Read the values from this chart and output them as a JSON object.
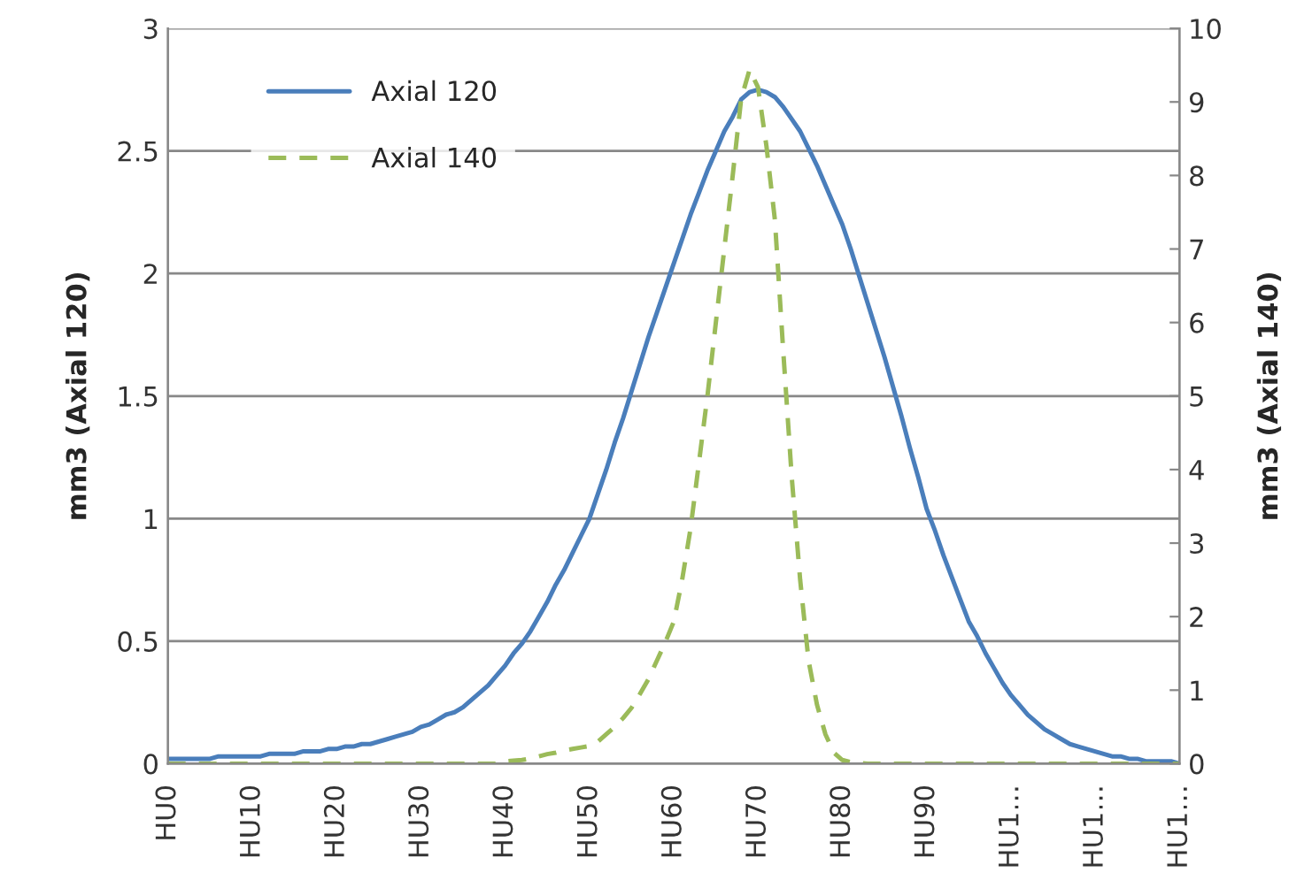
{
  "chart_data": {
    "type": "line",
    "categories": [
      "HU0",
      null,
      null,
      null,
      null,
      null,
      null,
      null,
      null,
      null,
      "HU10",
      null,
      null,
      null,
      null,
      null,
      null,
      null,
      null,
      null,
      "HU20",
      null,
      null,
      null,
      null,
      null,
      null,
      null,
      null,
      null,
      "HU30",
      null,
      null,
      null,
      null,
      null,
      null,
      null,
      null,
      null,
      "HU40",
      null,
      null,
      null,
      null,
      null,
      null,
      null,
      null,
      null,
      "HU50",
      null,
      null,
      null,
      null,
      null,
      null,
      null,
      null,
      null,
      "HU60",
      null,
      null,
      null,
      null,
      null,
      null,
      null,
      null,
      null,
      "HU70",
      null,
      null,
      null,
      null,
      null,
      null,
      null,
      null,
      null,
      "HU80",
      null,
      null,
      null,
      null,
      null,
      null,
      null,
      null,
      null,
      "HU90",
      null,
      null,
      null,
      null,
      null,
      null,
      null,
      null,
      null,
      "HU1…",
      null,
      null,
      null,
      null,
      null,
      null,
      null,
      null,
      null,
      "HU1…",
      null,
      null,
      null,
      null,
      null,
      null,
      null,
      null,
      null,
      "HU1…"
    ],
    "series": [
      {
        "name": "Axial 120",
        "color": "#4a7ebb",
        "line_style": "solid",
        "values": [
          0.02,
          0.02,
          0.02,
          0.02,
          0.02,
          0.02,
          0.03,
          0.03,
          0.03,
          0.03,
          0.03,
          0.03,
          0.04,
          0.04,
          0.04,
          0.04,
          0.05,
          0.05,
          0.05,
          0.06,
          0.06,
          0.07,
          0.07,
          0.08,
          0.08,
          0.09,
          0.1,
          0.11,
          0.12,
          0.13,
          0.15,
          0.16,
          0.18,
          0.2,
          0.21,
          0.23,
          0.26,
          0.29,
          0.32,
          0.36,
          0.4,
          0.45,
          0.49,
          0.54,
          0.6,
          0.66,
          0.73,
          0.79,
          0.86,
          0.93,
          1.0,
          1.1,
          1.2,
          1.31,
          1.41,
          1.52,
          1.63,
          1.74,
          1.84,
          1.94,
          2.04,
          2.14,
          2.24,
          2.33,
          2.42,
          2.5,
          2.58,
          2.64,
          2.71,
          2.74,
          2.75,
          2.74,
          2.72,
          2.68,
          2.63,
          2.58,
          2.51,
          2.44,
          2.36,
          2.28,
          2.2,
          2.1,
          1.99,
          1.88,
          1.77,
          1.66,
          1.54,
          1.42,
          1.29,
          1.17,
          1.04,
          0.95,
          0.85,
          0.76,
          0.67,
          0.58,
          0.52,
          0.45,
          0.39,
          0.33,
          0.28,
          0.24,
          0.2,
          0.17,
          0.14,
          0.12,
          0.1,
          0.08,
          0.07,
          0.06,
          0.05,
          0.04,
          0.03,
          0.03,
          0.02,
          0.02,
          0.01,
          0.01,
          0.01,
          0.01,
          0
        ]
      },
      {
        "name": "Axial 140",
        "color": "#9bbb59",
        "line_style": "dashed",
        "axis": "y2",
        "values": [
          0,
          0,
          0,
          0,
          0,
          0,
          0,
          0,
          0,
          0,
          0,
          0,
          0,
          0,
          0,
          0,
          0,
          0,
          0,
          0,
          0,
          0,
          0,
          0,
          0,
          0,
          0,
          0,
          0,
          0,
          0,
          0,
          0,
          0,
          0,
          0,
          0,
          0,
          0,
          0,
          0.03,
          0.04,
          0.05,
          0.07,
          0.1,
          0.13,
          0.15,
          0.18,
          0.2,
          0.22,
          0.24,
          0.3,
          0.4,
          0.5,
          0.62,
          0.76,
          0.95,
          1.15,
          1.4,
          1.65,
          1.93,
          2.5,
          3.2,
          4.1,
          5.0,
          6.0,
          7.0,
          8.0,
          9.04,
          9.44,
          9.2,
          8.4,
          7.4,
          5.6,
          3.9,
          2.5,
          1.4,
          0.8,
          0.4,
          0.15,
          0.05,
          0.02,
          0.01,
          0,
          0,
          0,
          0,
          0,
          0,
          0,
          0,
          0,
          0,
          0,
          0,
          0,
          0,
          0,
          0,
          0,
          0,
          0,
          0,
          0,
          0,
          0,
          0,
          0,
          0,
          0,
          0,
          0,
          0,
          0,
          0,
          0,
          0,
          0,
          0,
          0,
          0
        ]
      }
    ],
    "ylabel": "mm3 (Axial 120)",
    "y2label": "mm3 (Axial 140)",
    "ylim": [
      0,
      3
    ],
    "yticks": [
      0,
      0.5,
      1,
      1.5,
      2,
      2.5,
      3
    ],
    "y2lim": [
      0,
      10
    ],
    "y2ticks": [
      0,
      1,
      2,
      3,
      4,
      5,
      6,
      7,
      8,
      9,
      10
    ],
    "grid": "y",
    "legend": "top left"
  }
}
